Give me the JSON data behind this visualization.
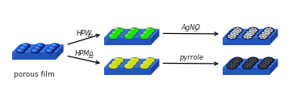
{
  "bg_color": "#ffffff",
  "blue_top": "#3a6fd8",
  "blue_top2": "#4a7fe8",
  "blue_side_front": "#2255bb",
  "blue_side_right": "#1a44aa",
  "blue_left": "#2d5dc7",
  "green_fill": "#22dd11",
  "yellow_fill": "#ccdd11",
  "arrow_color": "#222222",
  "text_color": "#222222",
  "silver_fc": "#d8d8d8",
  "silver_ec": "#777777",
  "ppy_fc": "#404040",
  "ppy_ec": "#111111",
  "porous_film_label": "porous film",
  "arrow1_label": "HPW",
  "arrow1_sub": "12",
  "arrow2_label": "AgNO",
  "arrow2_sub": "3",
  "arrow3_label": "HPMo",
  "arrow3_sub": "12",
  "arrow4_label": "pyrrole",
  "font_size": 6.5,
  "label_font_size": 6.0
}
